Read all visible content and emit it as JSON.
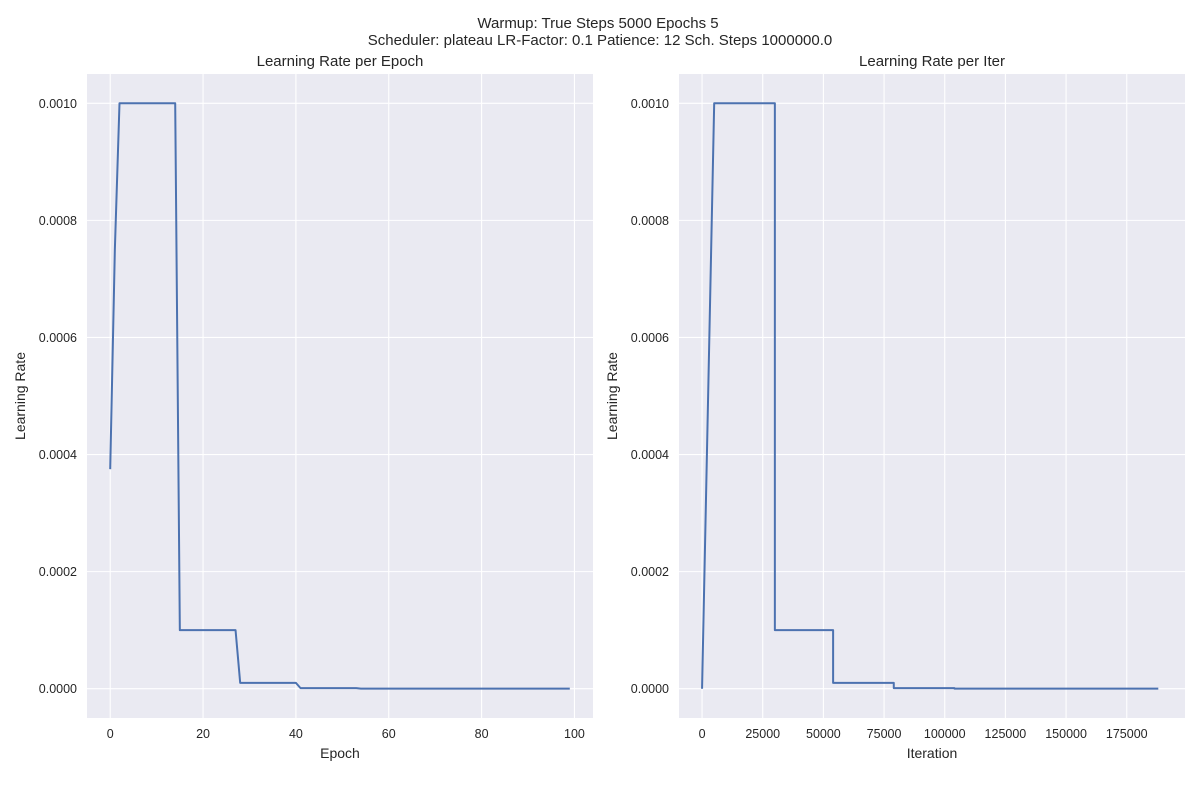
{
  "suptitle": {
    "line1": "Warmup: True  Steps 5000  Epochs 5",
    "line2": "Scheduler: plateau  LR-Factor: 0.1  Patience: 12  Sch. Steps 1000000.0"
  },
  "colors": {
    "axes_bg": "#eaeaf2",
    "grid": "#ffffff",
    "line": "#4c72b0",
    "text": "#262626"
  },
  "chart_data": [
    {
      "type": "line",
      "title": "Learning Rate per Epoch",
      "xlabel": "Epoch",
      "ylabel": "Learning Rate",
      "xlim": [
        -5,
        104
      ],
      "ylim": [
        -5e-05,
        0.00105
      ],
      "xticks": [
        0,
        20,
        40,
        60,
        80,
        100
      ],
      "xtick_labels": [
        "0",
        "20",
        "40",
        "60",
        "80",
        "100"
      ],
      "yticks": [
        0,
        0.0002,
        0.0004,
        0.0006,
        0.0008,
        0.001
      ],
      "ytick_labels": [
        "0.0000",
        "0.0002",
        "0.0004",
        "0.0006",
        "0.0008",
        "0.0010"
      ],
      "grid": true,
      "series": [
        {
          "x": [
            0,
            1,
            2,
            3,
            14,
            15,
            27,
            28,
            40,
            41,
            53,
            54,
            66,
            99
          ],
          "y": [
            0.000375,
            0.00075,
            0.001,
            0.001,
            0.001,
            0.0001,
            0.0001,
            1e-05,
            1e-05,
            1e-06,
            1e-06,
            1e-07,
            1e-07,
            1e-07
          ]
        }
      ]
    },
    {
      "type": "line",
      "title": "Learning Rate per Iter",
      "xlabel": "Iteration",
      "ylabel": "Learning Rate",
      "xlim": [
        -9500,
        199000
      ],
      "ylim": [
        -5e-05,
        0.00105
      ],
      "xticks": [
        0,
        25000,
        50000,
        75000,
        100000,
        125000,
        150000,
        175000
      ],
      "xtick_labels": [
        "0",
        "25000",
        "50000",
        "75000",
        "100000",
        "125000",
        "150000",
        "175000"
      ],
      "yticks": [
        0,
        0.0002,
        0.0004,
        0.0006,
        0.0008,
        0.001
      ],
      "ytick_labels": [
        "0.0000",
        "0.0002",
        "0.0004",
        "0.0006",
        "0.0008",
        "0.0010"
      ],
      "grid": true,
      "series": [
        {
          "x": [
            0,
            5000,
            30000,
            30000,
            54000,
            54000,
            79000,
            79000,
            104000,
            104000,
            188000
          ],
          "y": [
            0,
            0.001,
            0.001,
            0.0001,
            0.0001,
            1e-05,
            1e-05,
            1e-06,
            1e-06,
            1e-07,
            1e-07
          ]
        }
      ]
    }
  ]
}
